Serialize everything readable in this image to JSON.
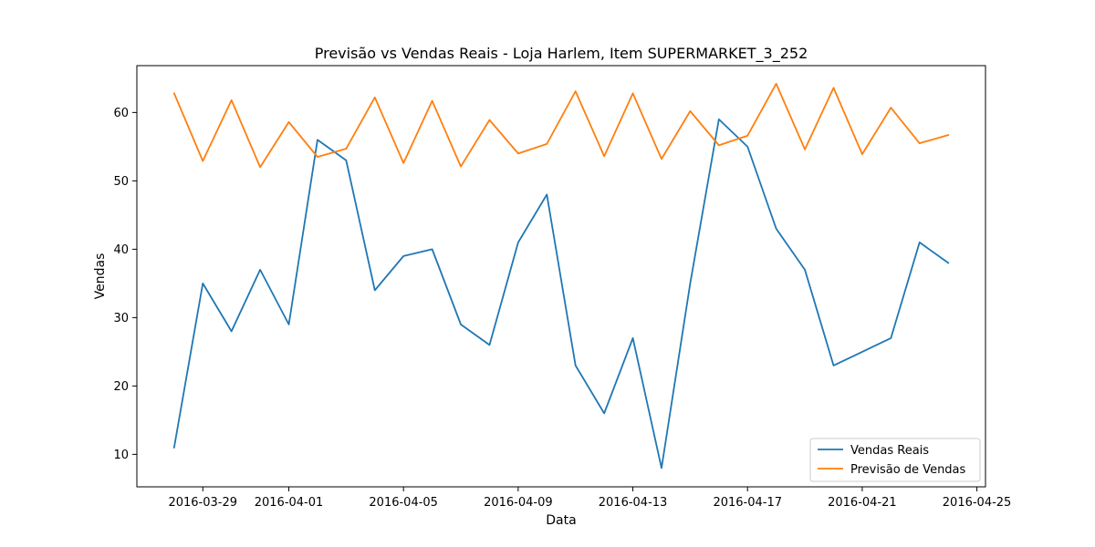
{
  "chart_data": {
    "type": "line",
    "title": "Previsão vs Vendas Reais - Loja Harlem, Item SUPERMARKET_3_252",
    "xlabel": "Data",
    "ylabel": "Vendas",
    "x": [
      "2016-03-28",
      "2016-03-29",
      "2016-03-30",
      "2016-03-31",
      "2016-04-01",
      "2016-04-02",
      "2016-04-03",
      "2016-04-04",
      "2016-04-05",
      "2016-04-06",
      "2016-04-07",
      "2016-04-08",
      "2016-04-09",
      "2016-04-10",
      "2016-04-11",
      "2016-04-12",
      "2016-04-13",
      "2016-04-14",
      "2016-04-15",
      "2016-04-16",
      "2016-04-17",
      "2016-04-18",
      "2016-04-19",
      "2016-04-20",
      "2016-04-21",
      "2016-04-22",
      "2016-04-23",
      "2016-04-24"
    ],
    "xlim": [
      "2016-03-26T16:48",
      "2016-04-25T07:12"
    ],
    "ylim": [
      5.25,
      66.85
    ],
    "x_ticks": [
      "2016-03-29",
      "2016-04-01",
      "2016-04-05",
      "2016-04-09",
      "2016-04-13",
      "2016-04-17",
      "2016-04-21",
      "2016-04-25"
    ],
    "y_ticks": [
      10,
      20,
      30,
      40,
      50,
      60
    ],
    "series": [
      {
        "name": "Vendas Reais",
        "color": "#1f77b4",
        "values": [
          11,
          35,
          28,
          37,
          29,
          56,
          53,
          34,
          39,
          40,
          29,
          26,
          41,
          48,
          23,
          16,
          27,
          8,
          35,
          59,
          55,
          43,
          37,
          23,
          25,
          27,
          41,
          38
        ]
      },
      {
        "name": "Previsão de Vendas",
        "color": "#ff7f0e",
        "values": [
          62.8,
          52.9,
          61.8,
          52.0,
          58.6,
          53.5,
          54.7,
          62.2,
          52.6,
          61.7,
          52.1,
          58.9,
          54.0,
          55.4,
          63.1,
          53.6,
          62.8,
          53.2,
          60.2,
          55.2,
          56.6,
          64.2,
          54.6,
          63.6,
          53.9,
          60.7,
          55.5,
          56.7
        ]
      }
    ],
    "legend": "lower-right",
    "grid": false
  }
}
